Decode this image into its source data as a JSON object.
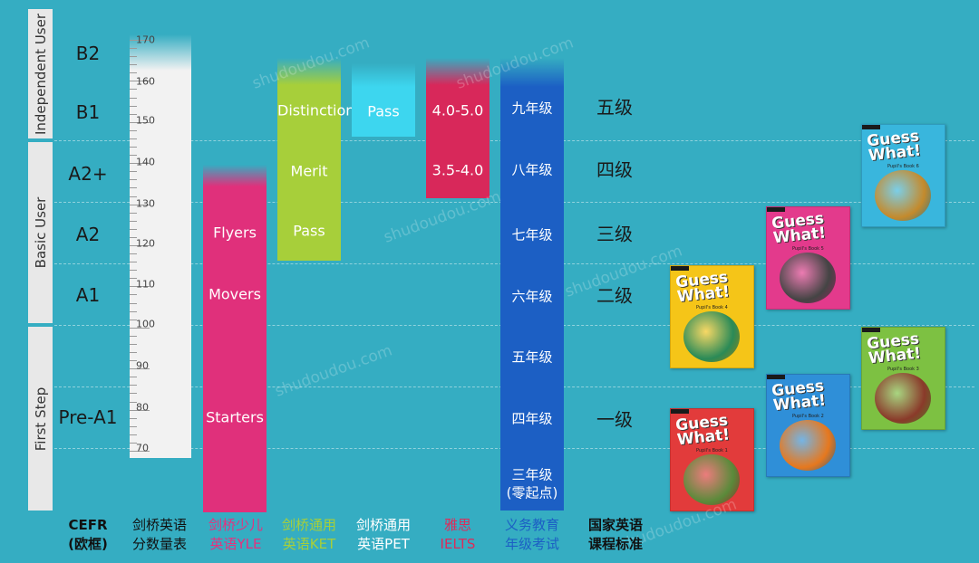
{
  "cefr_levels": [
    "B2",
    "B1",
    "A2+",
    "A2",
    "A1",
    "Pre-A1"
  ],
  "user_bands": [
    "Independent User",
    "Basic User",
    "First Step"
  ],
  "scale_ticks": [
    "170",
    "160",
    "150",
    "140",
    "130",
    "120",
    "110",
    "100",
    "90",
    "80",
    "70"
  ],
  "columns": [
    {
      "title_line1": "CEFR",
      "title_line2": "(欧框)",
      "color": "#111111"
    },
    {
      "title_line1": "剑桥英语",
      "title_line2": "分数量表",
      "color": "#111111"
    },
    {
      "title_line1": "剑桥少儿",
      "title_line2": "英语YLE",
      "color": "#e5317e"
    },
    {
      "title_line1": "剑桥通用",
      "title_line2": "英语KET",
      "color": "#a7cf3a"
    },
    {
      "title_line1": "剑桥通用",
      "title_line2": "英语PET",
      "color": "#ffffff"
    },
    {
      "title_line1": "雅思",
      "title_line2": "IELTS",
      "color": "#dd2b5a"
    },
    {
      "title_line1": "义务教育",
      "title_line2": "年级考试",
      "color": "#1c5fc4"
    },
    {
      "title_line1": "国家英语",
      "title_line2": "课程标准",
      "color": "#111111"
    }
  ],
  "yle_labels": [
    "Flyers",
    "Movers",
    "Starters"
  ],
  "ket_labels": [
    "Distinction",
    "Merit",
    "Pass"
  ],
  "pet_labels": [
    "Pass"
  ],
  "ielts_labels": [
    "4.0-5.0",
    "3.5-4.0"
  ],
  "grade_labels": [
    "九年级",
    "八年级",
    "七年级",
    "六年级",
    "五年级",
    "四年级",
    "三年级",
    "(零起点)"
  ],
  "national_levels": [
    "五级",
    "四级",
    "三级",
    "二级",
    "一级"
  ],
  "books": [
    {
      "title": "Guess What!",
      "subtitle": "Pupil's Book 6",
      "color": "#39b6dd",
      "art": "#c48a2c"
    },
    {
      "title": "Guess What!",
      "subtitle": "Pupil's Book 5",
      "color": "#e33a8c",
      "art": "#444444"
    },
    {
      "title": "Guess What!",
      "subtitle": "Pupil's Book 4",
      "color": "#f5c518",
      "art": "#2a8a57"
    },
    {
      "title": "Guess What!",
      "subtitle": "Pupil's Book 3",
      "color": "#7dc142",
      "art": "#8a3a2a"
    },
    {
      "title": "Guess What!",
      "subtitle": "Pupil's Book 2",
      "color": "#2f8fd8",
      "art": "#e6781e"
    },
    {
      "title": "Guess What!",
      "subtitle": "Pupil's Book 1",
      "color": "#e23b3b",
      "art": "#5a8a3a"
    }
  ],
  "watermark": "shudoudou.com",
  "chart_data": {
    "type": "table",
    "rows": [
      {
        "cefr": "B2",
        "scale": "",
        "yle": "",
        "ket": "",
        "pet": "",
        "ielts": "",
        "grade": "",
        "national": ""
      },
      {
        "cefr": "B1",
        "scale": "150-160",
        "yle": "",
        "ket": "Distinction",
        "pet": "Pass",
        "ielts": "4.0-5.0",
        "grade": "九年级",
        "national": "五级"
      },
      {
        "cefr": "A2+",
        "scale": "140",
        "yle": "",
        "ket": "Merit",
        "pet": "",
        "ielts": "3.5-4.0",
        "grade": "八年级",
        "national": "四级"
      },
      {
        "cefr": "A2",
        "scale": "120-130",
        "yle": "Flyers",
        "ket": "Pass",
        "pet": "",
        "ielts": "",
        "grade": "七年级",
        "national": "三级"
      },
      {
        "cefr": "A1",
        "scale": "100-110",
        "yle": "Movers",
        "ket": "",
        "pet": "",
        "ielts": "",
        "grade": "六年级",
        "national": "二级"
      },
      {
        "cefr": "Pre-A1",
        "scale": "70-90",
        "yle": "Starters",
        "ket": "",
        "pet": "",
        "ielts": "",
        "grade": "五年级 / 四年级 / 三年级(零起点)",
        "national": "一级"
      }
    ]
  }
}
